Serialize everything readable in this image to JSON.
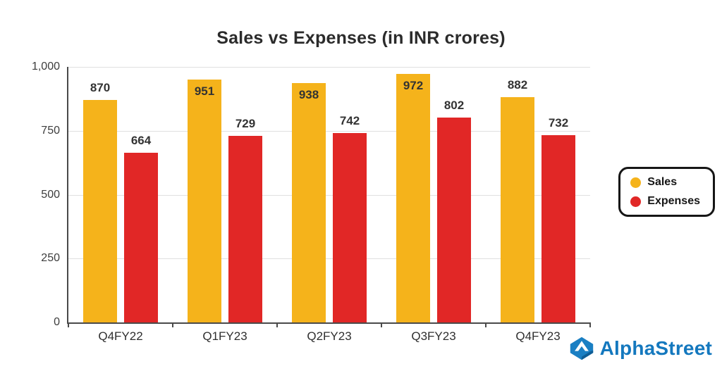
{
  "title": "Sales vs Expenses (in INR crores)",
  "chart_data": {
    "type": "bar",
    "title": "Sales vs Expenses (in INR crores)",
    "categories": [
      "Q4FY22",
      "Q1FY23",
      "Q2FY23",
      "Q3FY23",
      "Q4FY23"
    ],
    "series": [
      {
        "name": "Sales",
        "color": "#F5B31B",
        "values": [
          870,
          951,
          938,
          972,
          882
        ]
      },
      {
        "name": "Expenses",
        "color": "#E12726",
        "values": [
          664,
          729,
          742,
          802,
          732
        ]
      }
    ],
    "xlabel": "",
    "ylabel": "",
    "ylim": [
      0,
      1000
    ],
    "yticks": [
      0,
      250,
      500,
      750,
      1000
    ],
    "ytick_labels": [
      "0",
      "250",
      "500",
      "750",
      "1,000"
    ],
    "grid": true,
    "legend_position": "right"
  },
  "legend": {
    "items": [
      {
        "label": "Sales",
        "color": "#F5B31B"
      },
      {
        "label": "Expenses",
        "color": "#E12726"
      }
    ]
  },
  "branding": {
    "logo_text": "AlphaStreet",
    "color": "#1478be"
  }
}
